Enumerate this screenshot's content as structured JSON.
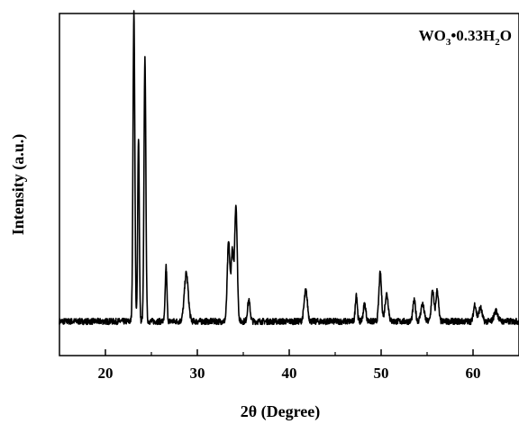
{
  "chart_data": {
    "type": "line",
    "title": "",
    "xlabel": "2θ (Degree)",
    "ylabel": "Intensity (a.u.)",
    "xlim": [
      15,
      65
    ],
    "ylim": [
      0,
      100
    ],
    "x_ticks": [
      20,
      30,
      40,
      50,
      60
    ],
    "y_ticks": [],
    "grid": false,
    "legend_position": "top-right",
    "legend": {
      "parts": [
        "WO",
        "3",
        "•0.33H",
        "2",
        "O"
      ]
    },
    "series": [
      {
        "name": "",
        "color": "#000000",
        "baseline": 10,
        "noise": 0.9,
        "peaks": [
          {
            "x": 23.1,
            "y": 90,
            "w": 0.14
          },
          {
            "x": 23.6,
            "y": 54,
            "w": 0.12
          },
          {
            "x": 24.3,
            "y": 77,
            "w": 0.14
          },
          {
            "x": 26.6,
            "y": 16,
            "w": 0.13
          },
          {
            "x": 28.8,
            "y": 14,
            "w": 0.3
          },
          {
            "x": 33.4,
            "y": 23,
            "w": 0.2
          },
          {
            "x": 33.8,
            "y": 20,
            "w": 0.18
          },
          {
            "x": 34.2,
            "y": 34,
            "w": 0.2
          },
          {
            "x": 35.6,
            "y": 6,
            "w": 0.2
          },
          {
            "x": 41.8,
            "y": 9,
            "w": 0.25
          },
          {
            "x": 47.3,
            "y": 8,
            "w": 0.15
          },
          {
            "x": 48.2,
            "y": 5,
            "w": 0.2
          },
          {
            "x": 49.9,
            "y": 14,
            "w": 0.2
          },
          {
            "x": 50.6,
            "y": 8,
            "w": 0.25
          },
          {
            "x": 53.6,
            "y": 6,
            "w": 0.2
          },
          {
            "x": 54.5,
            "y": 5,
            "w": 0.25
          },
          {
            "x": 55.6,
            "y": 9,
            "w": 0.2
          },
          {
            "x": 56.1,
            "y": 9,
            "w": 0.2
          },
          {
            "x": 60.2,
            "y": 5,
            "w": 0.2
          },
          {
            "x": 60.8,
            "y": 4,
            "w": 0.25
          },
          {
            "x": 62.5,
            "y": 3,
            "w": 0.3
          }
        ]
      }
    ]
  }
}
